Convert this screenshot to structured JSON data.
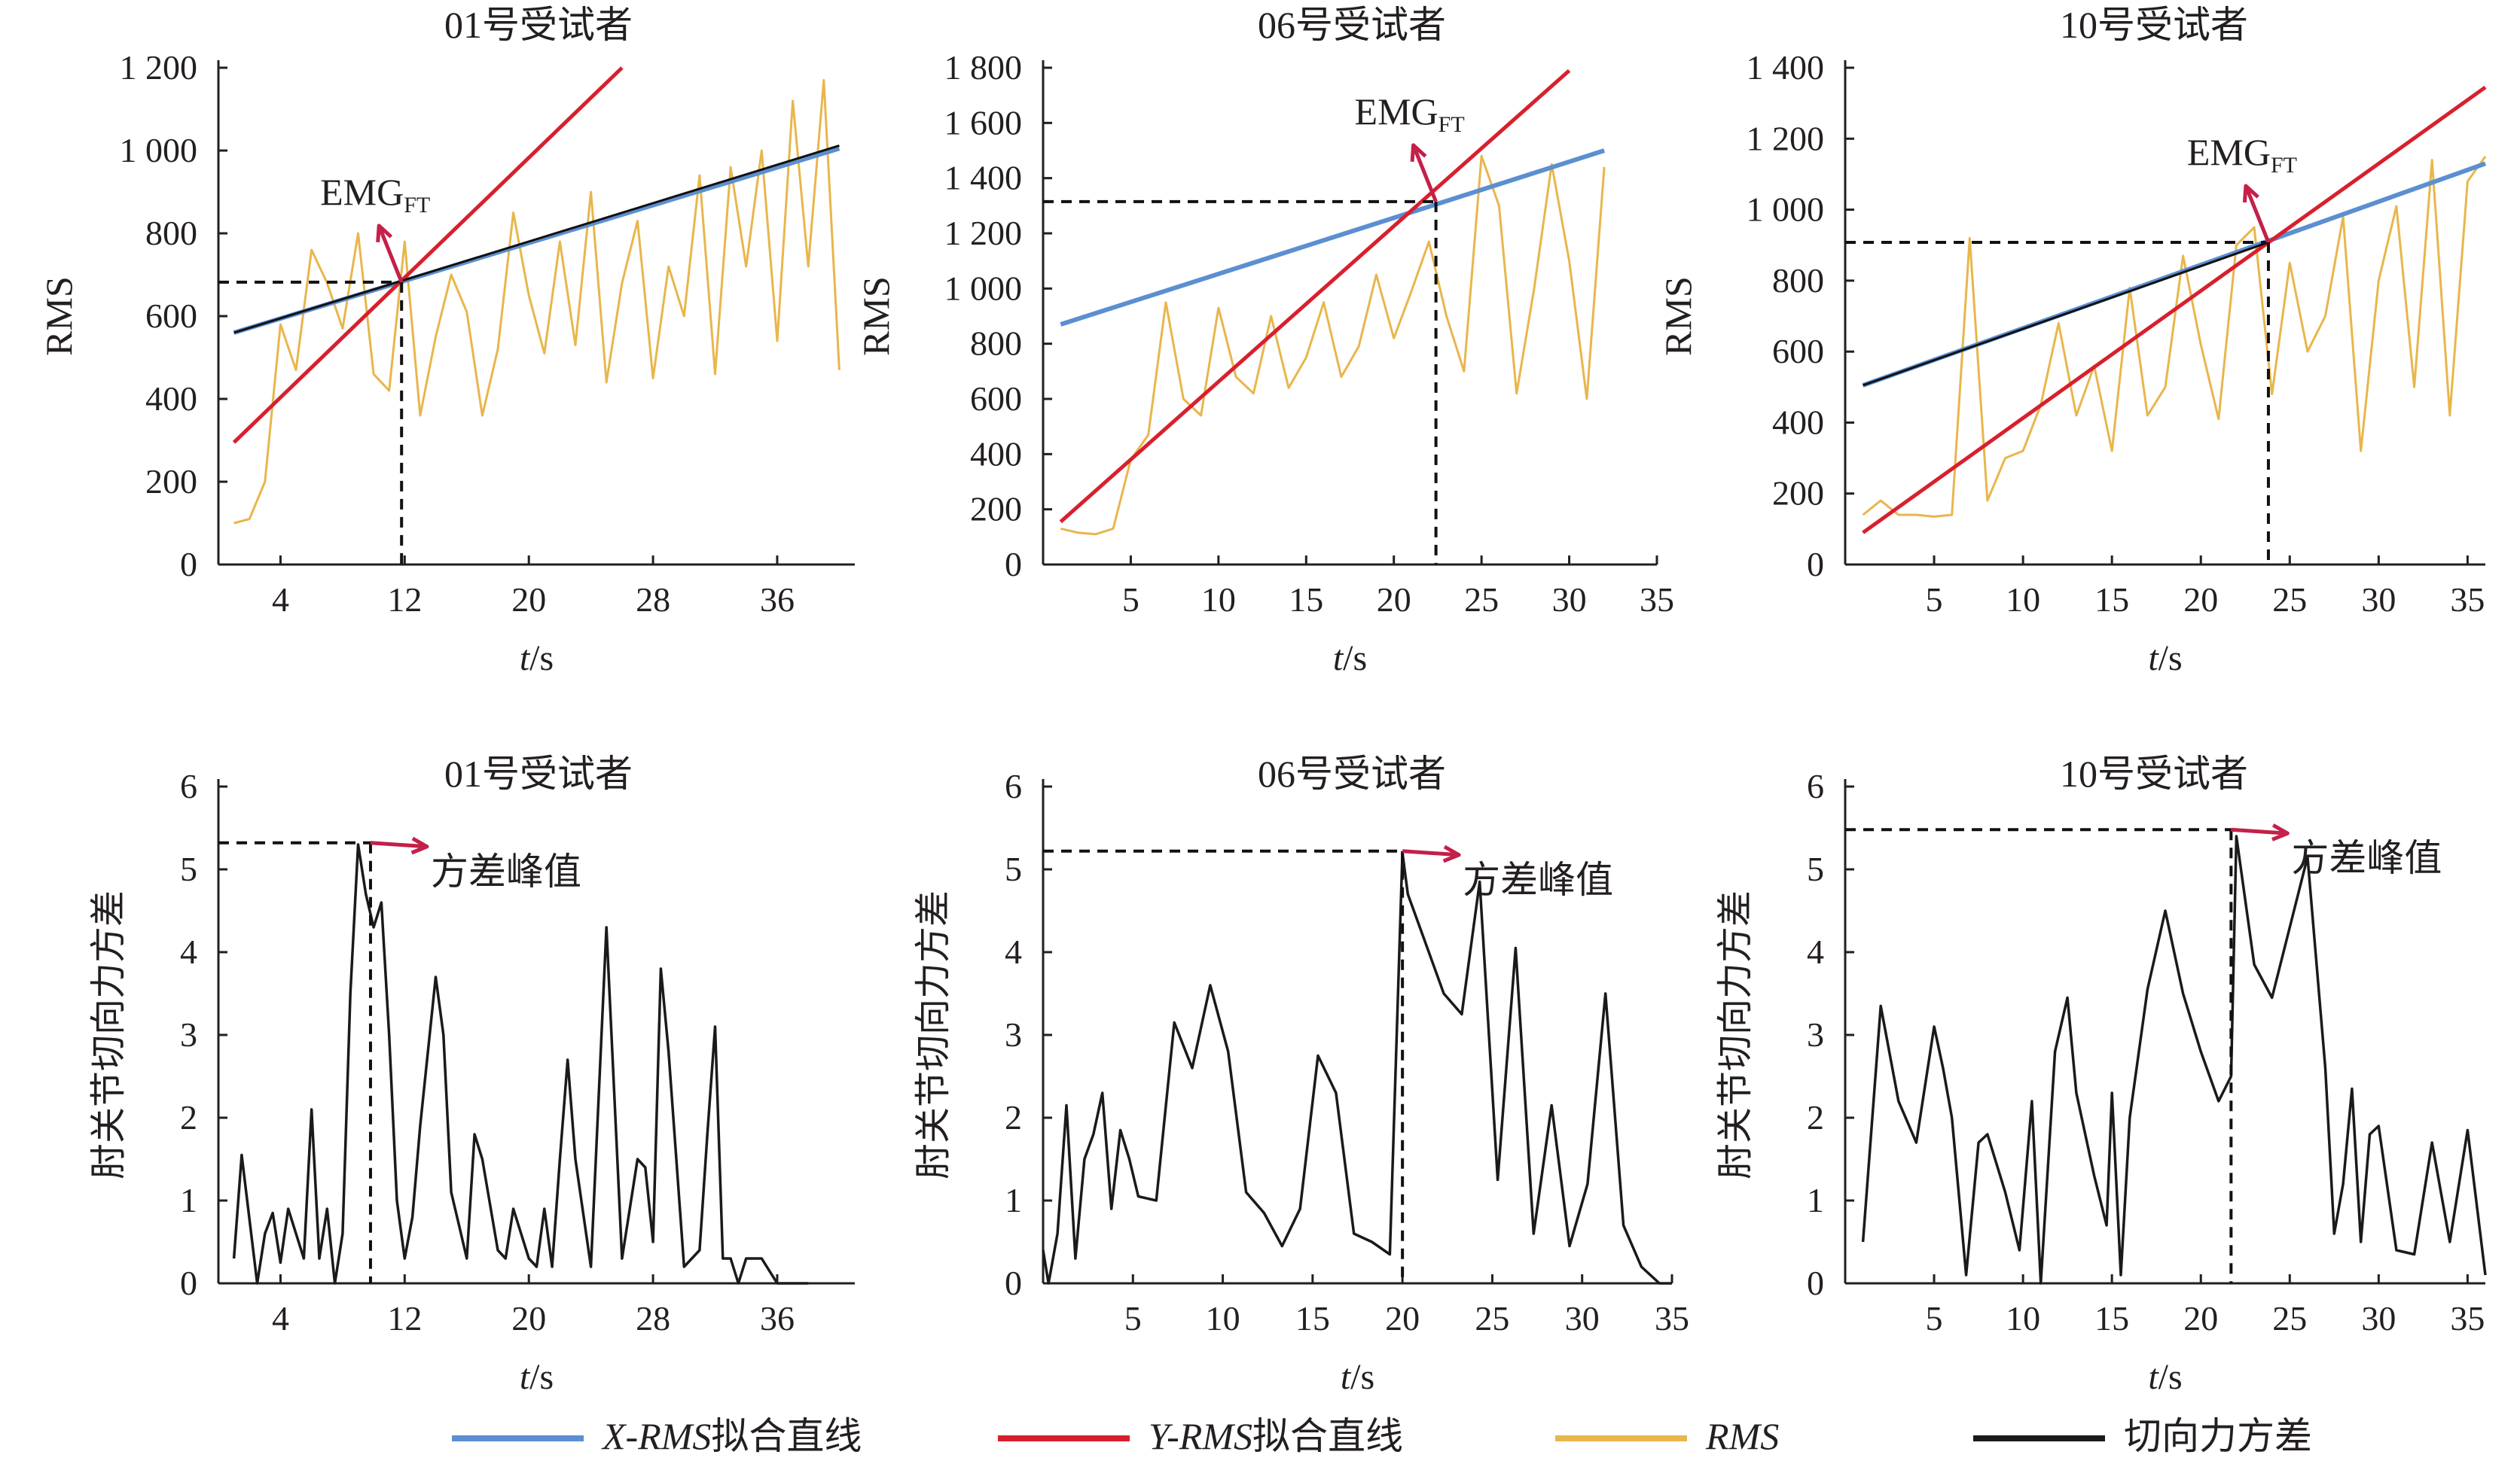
{
  "colors": {
    "x_fit": "#5b8fd1",
    "y_fit": "#d7202e",
    "rms": "#e8b64c",
    "variance": "#1a1a1a",
    "annotation_arrow": "#c3204a",
    "tangent_line": "#111111"
  },
  "legend": {
    "position": "bottom",
    "items": [
      {
        "key": "x_fit",
        "label_italic": "X-RMS",
        "label_rest": "拟合直线"
      },
      {
        "key": "y_fit",
        "label_italic": "Y-RMS",
        "label_rest": "拟合直线"
      },
      {
        "key": "rms",
        "label_italic": "RMS",
        "label_rest": ""
      },
      {
        "key": "variance",
        "label_italic": "",
        "label_rest": "切向力方差"
      }
    ]
  },
  "chart_data": [
    {
      "type": "line",
      "title": "01号受试者",
      "ylabel": "RMS",
      "xlabel_italic": "t",
      "xlabel_rest": "/s",
      "xlim": [
        0,
        41
      ],
      "ylim": [
        0,
        1200
      ],
      "xticks": [
        4,
        12,
        20,
        28,
        36
      ],
      "yticks": [
        0,
        200,
        400,
        600,
        800,
        1000,
        1200
      ],
      "ytick_labels": [
        "0",
        "200",
        "400",
        "600",
        "800",
        "1 000",
        "1 200"
      ],
      "annotation": {
        "text": "EMG",
        "sub": "FT",
        "x": 11.8,
        "y": 682
      },
      "series": [
        {
          "key": "rms",
          "x": [
            1,
            2,
            3,
            4,
            5,
            6,
            7,
            8,
            9,
            10,
            11,
            12,
            13,
            14,
            15,
            16,
            17,
            18,
            19,
            20,
            21,
            22,
            23,
            24,
            25,
            26,
            27,
            28,
            29,
            30,
            31,
            32,
            33,
            34,
            35,
            36,
            37,
            38,
            39,
            40
          ],
          "y": [
            100,
            110,
            200,
            580,
            470,
            760,
            680,
            570,
            800,
            460,
            420,
            780,
            360,
            550,
            700,
            610,
            360,
            520,
            850,
            650,
            510,
            780,
            530,
            900,
            440,
            680,
            830,
            450,
            720,
            600,
            940,
            460,
            960,
            720,
            1000,
            540,
            1120,
            720,
            1170,
            470
          ]
        },
        {
          "key": "x_fit",
          "x": [
            1,
            40
          ],
          "y": [
            560,
            1005
          ]
        },
        {
          "key": "y_fit",
          "x": [
            1,
            26
          ],
          "y": [
            295,
            1200
          ]
        },
        {
          "key": "tangent_line",
          "x": [
            1,
            40
          ],
          "y": [
            560,
            1012
          ]
        }
      ]
    },
    {
      "type": "line",
      "title": "06号受试者",
      "ylabel": "RMS",
      "xlabel_italic": "t",
      "xlabel_rest": "/s",
      "xlim": [
        0,
        35
      ],
      "ylim": [
        0,
        1800
      ],
      "xticks": [
        5,
        10,
        15,
        20,
        25,
        30,
        35
      ],
      "yticks": [
        0,
        200,
        400,
        600,
        800,
        1000,
        1200,
        1400,
        1600,
        1800
      ],
      "ytick_labels": [
        "0",
        "200",
        "400",
        "600",
        "800",
        "1 000",
        "1 200",
        "1 400",
        "1 600",
        "1 800"
      ],
      "annotation": {
        "text": "EMG",
        "sub": "FT",
        "x": 22.4,
        "y": 1315
      },
      "series": [
        {
          "key": "rms",
          "x": [
            1,
            2,
            3,
            4,
            5,
            6,
            7,
            8,
            9,
            10,
            11,
            12,
            13,
            14,
            15,
            16,
            17,
            18,
            19,
            20,
            21,
            22,
            23,
            24,
            25,
            26,
            27,
            28,
            29,
            30,
            31,
            32
          ],
          "y": [
            130,
            115,
            110,
            130,
            380,
            470,
            950,
            600,
            540,
            930,
            680,
            620,
            900,
            640,
            750,
            950,
            680,
            790,
            1050,
            820,
            990,
            1170,
            900,
            700,
            1480,
            1300,
            620,
            1000,
            1450,
            1100,
            600,
            1440
          ]
        },
        {
          "key": "x_fit",
          "x": [
            1,
            32
          ],
          "y": [
            870,
            1500
          ]
        },
        {
          "key": "y_fit",
          "x": [
            1,
            30
          ],
          "y": [
            155,
            1790
          ]
        }
      ]
    },
    {
      "type": "line",
      "title": "10号受试者",
      "ylabel": "RMS",
      "xlabel_italic": "t",
      "xlabel_rest": "/s",
      "xlim": [
        0,
        36
      ],
      "ylim": [
        0,
        1400
      ],
      "xticks": [
        5,
        10,
        15,
        20,
        25,
        30,
        35
      ],
      "yticks": [
        0,
        200,
        400,
        600,
        800,
        1000,
        1200,
        1400
      ],
      "ytick_labels": [
        "0",
        "200",
        "400",
        "600",
        "800",
        "1 000",
        "1 200",
        "1 400"
      ],
      "annotation": {
        "text": "EMG",
        "sub": "FT",
        "x": 23.8,
        "y": 908
      },
      "series": [
        {
          "key": "rms",
          "x": [
            1,
            2,
            3,
            4,
            5,
            6,
            7,
            8,
            9,
            10,
            11,
            12,
            13,
            14,
            15,
            16,
            17,
            18,
            19,
            20,
            21,
            22,
            23,
            24,
            25,
            26,
            27,
            28,
            29,
            30,
            31,
            32,
            33,
            34,
            35,
            36
          ],
          "y": [
            140,
            180,
            140,
            140,
            135,
            140,
            920,
            180,
            300,
            320,
            450,
            680,
            420,
            560,
            320,
            780,
            420,
            500,
            870,
            620,
            410,
            900,
            950,
            480,
            850,
            600,
            700,
            980,
            320,
            800,
            1010,
            500,
            1140,
            420,
            1080,
            1150
          ]
        },
        {
          "key": "x_fit",
          "x": [
            1,
            36
          ],
          "y": [
            505,
            1130
          ]
        },
        {
          "key": "y_fit",
          "x": [
            1,
            36
          ],
          "y": [
            90,
            1345
          ]
        },
        {
          "key": "tangent_line",
          "x": [
            1,
            23.8
          ],
          "y": [
            505,
            908
          ]
        }
      ]
    },
    {
      "type": "line",
      "title": "01号受试者",
      "ylabel": "肘关节切向力方差",
      "xlabel_italic": "t",
      "xlabel_rest": "/s",
      "xlim": [
        0,
        41
      ],
      "ylim": [
        0,
        6
      ],
      "xticks": [
        4,
        12,
        20,
        28,
        36
      ],
      "yticks": [
        0,
        1,
        2,
        3,
        4,
        5,
        6
      ],
      "ytick_labels": [
        "0",
        "1",
        "2",
        "3",
        "4",
        "5",
        "6"
      ],
      "annotation": {
        "text": "方差峰值",
        "x": 9.8,
        "y": 5.32
      },
      "series": [
        {
          "key": "variance",
          "x": [
            1,
            1.5,
            2.5,
            3,
            3.5,
            4,
            4.5,
            5.5,
            6,
            6.5,
            7,
            7.5,
            8,
            8.5,
            9,
            9.5,
            10,
            10.5,
            11,
            11.5,
            12,
            12.5,
            13,
            14,
            14.5,
            15,
            15.5,
            16,
            16.5,
            17,
            18,
            18.5,
            19,
            20,
            20.5,
            21,
            21.5,
            22,
            22.5,
            23,
            24,
            25,
            26,
            27,
            27.5,
            28,
            28.5,
            29,
            30,
            31,
            31.5,
            32,
            32.5,
            33,
            33.5,
            34,
            35,
            36,
            37,
            38
          ],
          "y": [
            0.3,
            1.55,
            0.0,
            0.6,
            0.85,
            0.25,
            0.9,
            0.3,
            2.1,
            0.3,
            0.9,
            0.0,
            0.6,
            3.5,
            5.3,
            4.7,
            4.3,
            4.6,
            3.0,
            1.0,
            0.3,
            0.8,
            1.9,
            3.7,
            3.0,
            1.1,
            0.7,
            0.3,
            1.8,
            1.5,
            0.4,
            0.3,
            0.9,
            0.3,
            0.2,
            0.9,
            0.2,
            1.5,
            2.7,
            1.5,
            0.2,
            4.3,
            0.3,
            1.5,
            1.4,
            0.5,
            3.8,
            2.8,
            0.2,
            0.4,
            1.8,
            3.1,
            0.3,
            0.3,
            0.0,
            0.3,
            0.3,
            0.0,
            0.0,
            0.0
          ]
        }
      ]
    },
    {
      "type": "line",
      "title": "06号受试者",
      "ylabel": "肘关节切向力方差",
      "xlabel_italic": "t",
      "xlabel_rest": "/s",
      "xlim": [
        0,
        35
      ],
      "ylim": [
        0,
        6
      ],
      "xticks": [
        5,
        10,
        15,
        20,
        25,
        30,
        35
      ],
      "yticks": [
        0,
        1,
        2,
        3,
        4,
        5,
        6
      ],
      "ytick_labels": [
        "0",
        "1",
        "2",
        "3",
        "4",
        "5",
        "6"
      ],
      "annotation": {
        "text": "方差峰值",
        "x": 20,
        "y": 5.22
      },
      "series": [
        {
          "key": "variance",
          "x": [
            0,
            0.3,
            0.8,
            1.3,
            1.8,
            2.3,
            2.8,
            3.3,
            3.8,
            4.3,
            4.8,
            5.3,
            6.3,
            7.3,
            8.3,
            9.3,
            10.3,
            11.3,
            12.3,
            13.3,
            14.3,
            15.3,
            16.3,
            17.3,
            18.3,
            19.3,
            20.0,
            20.3,
            21.3,
            22.3,
            23.3,
            24.3,
            25.3,
            26.3,
            27.3,
            28.3,
            29.3,
            30.3,
            31.3,
            32.3,
            33.3,
            34.3,
            35
          ],
          "y": [
            0.4,
            0.0,
            0.6,
            2.15,
            0.3,
            1.5,
            1.8,
            2.3,
            0.9,
            1.85,
            1.5,
            1.05,
            1.0,
            3.15,
            2.6,
            3.6,
            2.8,
            1.1,
            0.85,
            0.45,
            0.9,
            2.75,
            2.3,
            0.6,
            0.5,
            0.35,
            5.2,
            4.7,
            4.1,
            3.5,
            3.25,
            4.85,
            1.25,
            4.05,
            0.6,
            2.15,
            0.45,
            1.2,
            3.5,
            0.7,
            0.2,
            0.0,
            0.0
          ]
        }
      ]
    },
    {
      "type": "line",
      "title": "10号受试者",
      "ylabel": "肘关节切向力方差",
      "xlabel_italic": "t",
      "xlabel_rest": "/s",
      "xlim": [
        0,
        36
      ],
      "ylim": [
        0,
        6
      ],
      "xticks": [
        5,
        10,
        15,
        20,
        25,
        30,
        35
      ],
      "yticks": [
        0,
        1,
        2,
        3,
        4,
        5,
        6
      ],
      "ytick_labels": [
        "0",
        "1",
        "2",
        "3",
        "4",
        "5",
        "6"
      ],
      "annotation": {
        "text": "方差峰值",
        "x": 21.7,
        "y": 5.48
      },
      "series": [
        {
          "key": "variance",
          "x": [
            1,
            2,
            3,
            4,
            5,
            5.5,
            6,
            6.8,
            7.5,
            8,
            9,
            9.8,
            10.5,
            11,
            11.8,
            12.5,
            13,
            14,
            14.7,
            15,
            15.5,
            16,
            17,
            18,
            19,
            20,
            21,
            21.7,
            22,
            23,
            24,
            25,
            26,
            27,
            27.5,
            28,
            28.5,
            29,
            29.5,
            30,
            31,
            32,
            33,
            34,
            35,
            36
          ],
          "y": [
            0.5,
            3.35,
            2.2,
            1.7,
            3.1,
            2.6,
            2.0,
            0.1,
            1.7,
            1.8,
            1.1,
            0.4,
            2.2,
            0.0,
            2.8,
            3.45,
            2.3,
            1.3,
            0.7,
            2.3,
            0.1,
            2.0,
            3.55,
            4.5,
            3.5,
            2.8,
            2.2,
            2.5,
            5.4,
            3.85,
            3.45,
            4.3,
            5.15,
            2.6,
            0.6,
            1.2,
            2.35,
            0.5,
            1.8,
            1.9,
            0.4,
            0.35,
            1.7,
            0.5,
            1.85,
            0.1
          ]
        }
      ]
    }
  ]
}
